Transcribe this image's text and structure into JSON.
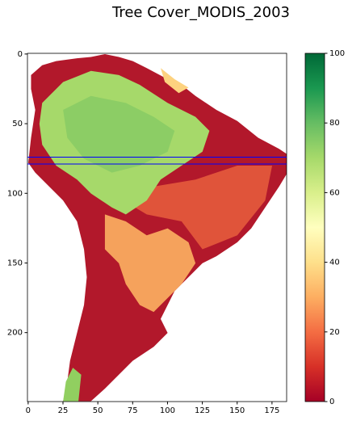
{
  "chart_data": {
    "type": "heatmap",
    "title": "Tree Cover_MODIS_2003",
    "xlim": [
      -0.5,
      185.5
    ],
    "ylim": [
      249.5,
      -0.5
    ],
    "xticks": [
      0,
      25,
      50,
      75,
      100,
      125,
      150,
      175
    ],
    "yticks": [
      0,
      50,
      100,
      150,
      200
    ],
    "hlines": [
      {
        "y": 74,
        "color": "#0000ff"
      },
      {
        "y": 79,
        "color": "#0000ff"
      }
    ],
    "colorbar": {
      "colormap": "RdYlGn",
      "colors": [
        "#a50026",
        "#d73027",
        "#f46d43",
        "#fdae61",
        "#fee08b",
        "#ffffbf",
        "#d9ef8b",
        "#a6d96a",
        "#66bd63",
        "#1a9850",
        "#006837"
      ],
      "lim": [
        0,
        100
      ],
      "ticks": [
        0,
        20,
        40,
        60,
        80,
        100
      ]
    }
  }
}
